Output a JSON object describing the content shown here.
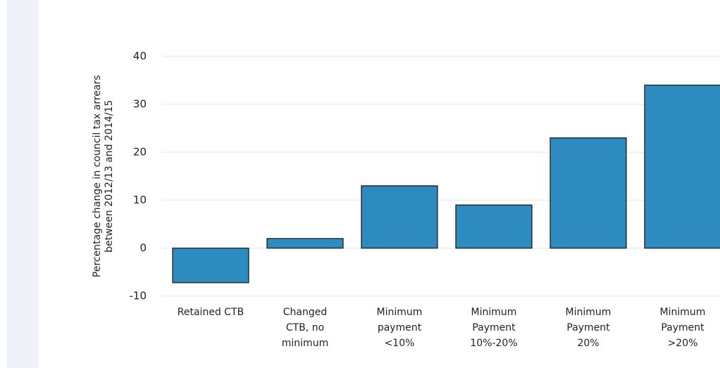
{
  "chart_data": {
    "type": "bar",
    "y_axis_label": "Percentage change in council tax arrears\nbetween 2012/13 and 2014/15",
    "categories": [
      "Retained CTB",
      "Changed\nCTB, no\nminimum",
      "Minimum\npayment\n<10%",
      "Minimum\nPayment\n10%-20%",
      "Minimum\nPayment\n20%",
      "Minimum\nPayment\n>20%"
    ],
    "values": [
      -7.2,
      2,
      13,
      9,
      23,
      34
    ],
    "color": "#2e8bc0",
    "ylim": [
      -10,
      40
    ],
    "yticks": [
      -10,
      0,
      10,
      20,
      30,
      40
    ],
    "grid": true
  }
}
